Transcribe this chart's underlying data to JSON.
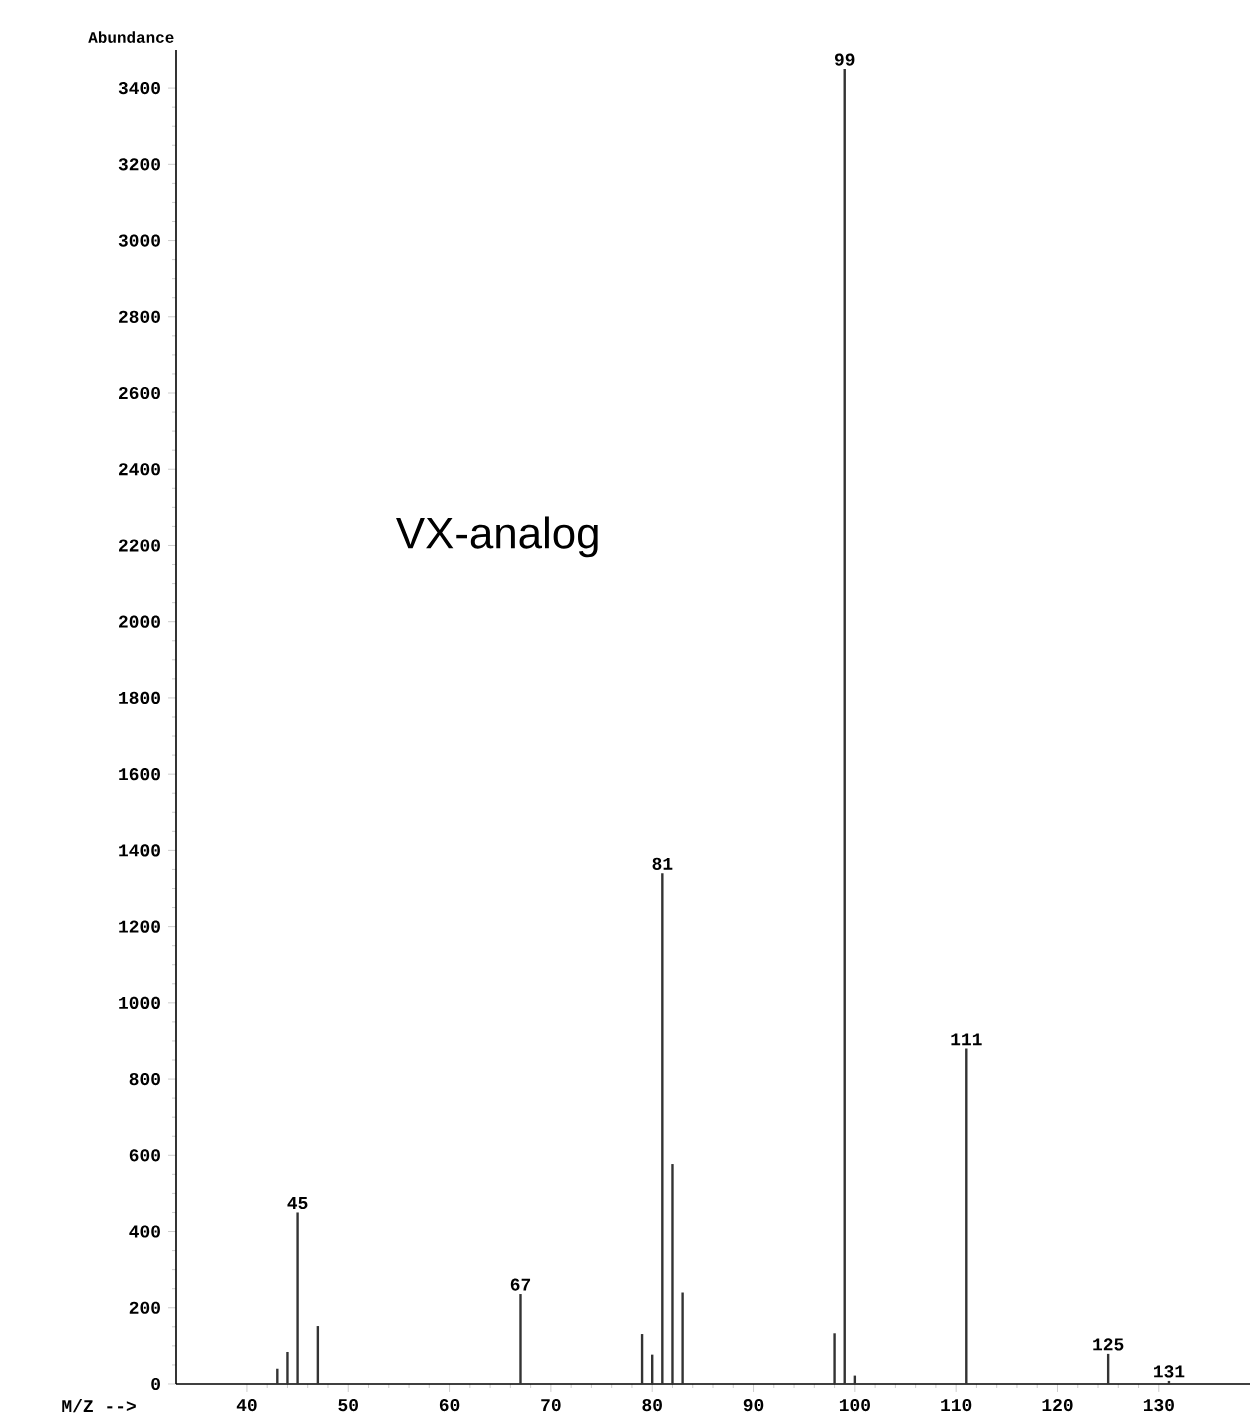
{
  "chart_data": {
    "type": "bar",
    "xlabel": "M/Z  -->",
    "ylabel": "Abundance",
    "x": [
      43,
      44,
      45,
      47,
      67,
      79,
      80,
      81,
      82,
      83,
      98,
      99,
      100,
      111,
      125,
      131
    ],
    "values": [
      40,
      84,
      450,
      152,
      236,
      131,
      77,
      1340,
      577,
      240,
      133,
      3450,
      22,
      880,
      79,
      8
    ],
    "color": "#333333",
    "xlim": [
      33,
      139
    ],
    "xticks": [
      40,
      50,
      60,
      70,
      80,
      90,
      100,
      110,
      120,
      130
    ],
    "ylim": [
      0,
      3500
    ],
    "yticks": [
      0,
      200,
      400,
      600,
      800,
      1000,
      1200,
      1400,
      1600,
      1800,
      2000,
      2200,
      2400,
      2600,
      2800,
      3000,
      3200,
      3400
    ],
    "annotations": [
      "VX-analog",
      {
        "text": "45",
        "x": 45,
        "y": 450
      },
      {
        "text": "67",
        "x": 67,
        "y": 236
      },
      {
        "text": "81",
        "x": 81,
        "y": 1340
      },
      {
        "text": "99",
        "x": 99,
        "y": 3450
      },
      {
        "text": "111",
        "x": 111,
        "y": 880
      },
      {
        "text": "125",
        "x": 125,
        "y": 79
      },
      {
        "text": "131",
        "x": 131,
        "y": 8
      }
    ]
  }
}
